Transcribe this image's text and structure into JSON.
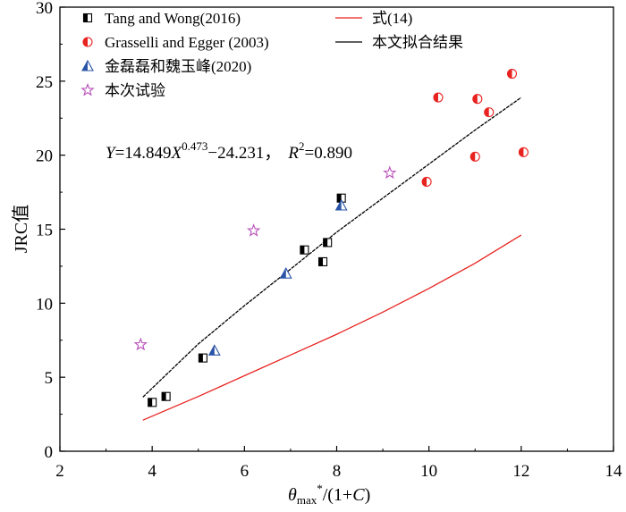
{
  "chart_data": {
    "type": "scatter",
    "xlim": [
      2,
      14
    ],
    "ylim": [
      0,
      30
    ],
    "x_ticks": [
      "2",
      "4",
      "6",
      "8",
      "10",
      "12",
      "14"
    ],
    "y_ticks": [
      "0",
      "5",
      "10",
      "15",
      "20",
      "25",
      "30"
    ],
    "xlabel": {
      "theta": "θ",
      "sub": "max",
      "sup": "*",
      "rest_open": "/(1+",
      "c": "C",
      "rest_close": ")"
    },
    "ylabel": "JRC值",
    "equation": {
      "y": "Y",
      "coef": "=14.849",
      "x": "X",
      "exp": "0.473",
      "tail": "−24.231，",
      "r": "R",
      "r_exp": "2",
      "r_val": "=0.890"
    },
    "legend_left": [
      {
        "label": "Tang and Wong(2016)",
        "marker": "half-square",
        "color": "#000000"
      },
      {
        "label": "Grasselli and Egger (2003)",
        "marker": "half-circle",
        "color": "#e8221f"
      },
      {
        "label": "金磊磊和魏玉峰(2020)",
        "marker": "half-triangle",
        "color": "#2a54a8"
      },
      {
        "label": "本次试验",
        "marker": "star",
        "color": "#b84fb8"
      }
    ],
    "legend_right": [
      {
        "label": "式(14)",
        "line_color": "#e8221f"
      },
      {
        "label": "本文拟合结果",
        "line_color": "#000000"
      }
    ],
    "series": [
      {
        "name": "Tang and Wong(2016)",
        "marker": "half-square",
        "color": "#000000",
        "points": [
          [
            4.0,
            3.3
          ],
          [
            4.3,
            3.7
          ],
          [
            5.1,
            6.3
          ],
          [
            7.3,
            13.6
          ],
          [
            7.7,
            12.8
          ],
          [
            7.8,
            14.1
          ],
          [
            8.1,
            17.1
          ]
        ]
      },
      {
        "name": "Grasselli and Egger (2003)",
        "marker": "half-circle",
        "color": "#e8221f",
        "points": [
          [
            9.95,
            18.2
          ],
          [
            10.2,
            23.9
          ],
          [
            11.0,
            19.9
          ],
          [
            11.05,
            23.8
          ],
          [
            11.3,
            22.9
          ],
          [
            11.8,
            25.5
          ],
          [
            12.05,
            20.2
          ]
        ]
      },
      {
        "name": "金磊磊和魏玉峰(2020)",
        "marker": "half-triangle",
        "color": "#2a54a8",
        "points": [
          [
            5.35,
            6.8
          ],
          [
            6.9,
            12.0
          ],
          [
            8.1,
            16.6
          ]
        ]
      },
      {
        "name": "本次试验",
        "marker": "star",
        "color": "#b84fb8",
        "points": [
          [
            3.75,
            7.2
          ],
          [
            6.2,
            14.9
          ],
          [
            9.15,
            18.8
          ]
        ]
      }
    ],
    "lines": [
      {
        "name": "式(14)",
        "color": "#e8221f",
        "dashed": false,
        "points": [
          [
            3.8,
            2.1
          ],
          [
            5.0,
            3.7
          ],
          [
            6.0,
            5.1
          ],
          [
            7.0,
            6.5
          ],
          [
            8.0,
            7.9
          ],
          [
            9.0,
            9.4
          ],
          [
            10.0,
            11.0
          ],
          [
            11.0,
            12.7
          ],
          [
            12.0,
            14.6
          ]
        ]
      },
      {
        "name": "本文拟合结果",
        "color": "#000000",
        "dashed": true,
        "points": [
          [
            3.8,
            3.66
          ],
          [
            4.5,
            5.76
          ],
          [
            5.0,
            7.25
          ],
          [
            6.0,
            9.83
          ],
          [
            7.0,
            12.3
          ],
          [
            8.0,
            14.8
          ],
          [
            9.0,
            17.1
          ],
          [
            10.0,
            19.4
          ],
          [
            11.0,
            21.7
          ],
          [
            12.0,
            23.9
          ]
        ]
      }
    ]
  }
}
